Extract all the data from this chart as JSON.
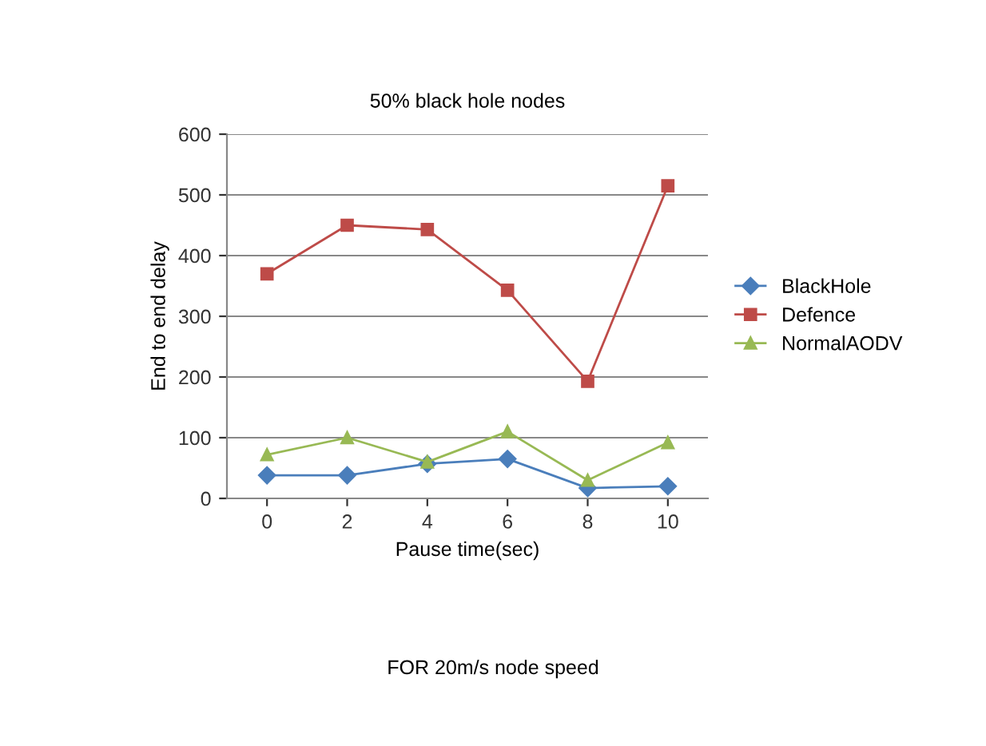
{
  "chart_data": {
    "type": "line",
    "title": "50% black hole nodes",
    "xlabel": "Pause time(sec)",
    "ylabel": "End to end delay",
    "annotations": [
      "FOR 20m/s node speed"
    ],
    "categories": [
      "0",
      "2",
      "4",
      "6",
      "8",
      "10"
    ],
    "series": [
      {
        "name": "BlackHole",
        "color": "#4a7ebb",
        "marker": "diamond",
        "values": [
          38,
          38,
          57,
          65,
          17,
          20
        ]
      },
      {
        "name": "Defence",
        "color": "#be4b48",
        "marker": "square",
        "values": [
          370,
          450,
          443,
          343,
          193,
          515
        ]
      },
      {
        "name": "NormalAODV",
        "color": "#98b954",
        "marker": "triangle",
        "values": [
          72,
          100,
          60,
          110,
          30,
          92
        ]
      }
    ],
    "ylim": [
      0,
      600
    ],
    "yticks": [
      0,
      100,
      200,
      300,
      400,
      500,
      600
    ],
    "grid": "y",
    "legend": "right"
  }
}
